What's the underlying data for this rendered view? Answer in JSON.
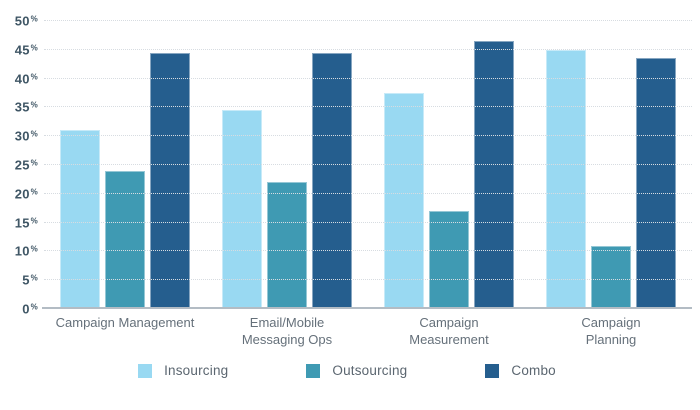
{
  "chart_data": {
    "type": "bar",
    "title": "",
    "xlabel": "",
    "ylabel": "",
    "categories": [
      "Campaign Management",
      "Email/Mobile Messaging Ops",
      "Campaign Measurement",
      "Campaign Planning"
    ],
    "category_label_lines": [
      [
        "Campaign Management"
      ],
      [
        "Email/Mobile",
        "Messaging Ops"
      ],
      [
        "Campaign",
        "Measurement"
      ],
      [
        "Campaign",
        "Planning"
      ]
    ],
    "series": [
      {
        "name": "Insourcing",
        "color": "#99d9f2",
        "values": [
          31,
          34.5,
          37.5,
          45
        ]
      },
      {
        "name": "Outsourcing",
        "color": "#3f9ab3",
        "values": [
          24,
          22,
          17,
          11
        ]
      },
      {
        "name": "Combo",
        "color": "#255e8e",
        "values": [
          44.5,
          44.5,
          46.5,
          43.5
        ]
      }
    ],
    "ylim": [
      0,
      50
    ],
    "ytick_step": 5,
    "ytick_suffix": "%",
    "grid": "horizontal-dotted",
    "legend_position": "bottom"
  },
  "style_colors": {
    "tick_label": "#3f5665",
    "category_label": "#65707a",
    "legend_label": "#5b6670",
    "gridline": "#d7dce1",
    "axis_line": "#b3bcc4",
    "background": "#ffffff"
  }
}
